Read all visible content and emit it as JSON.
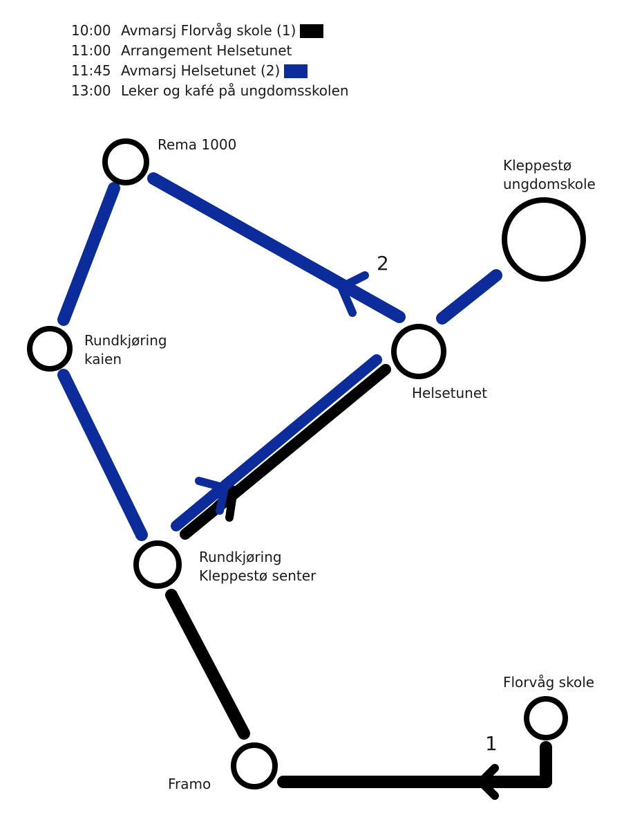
{
  "colors": {
    "route1": "#000000",
    "route2": "#0b2c9a",
    "node": "#000000"
  },
  "legend": [
    {
      "time": "10:00",
      "text": "Avmarsj Florvåg skole (1)",
      "swatch": "#000000"
    },
    {
      "time": "11:00",
      "text": "Arrangement Helsetunet",
      "swatch": ""
    },
    {
      "time": "11:45",
      "text": "Avmarsj Helsetunet (2)",
      "swatch": "#0b2c9a"
    },
    {
      "time": "13:00",
      "text": "Leker og kafé på ungdomsskolen",
      "swatch": ""
    }
  ],
  "nodes": {
    "rema": {
      "line1": "Rema 1000"
    },
    "kaien": {
      "line1": "Rundkjøring",
      "line2": "kaien"
    },
    "kleppesto_ungdomskole": {
      "line1": "Kleppestø",
      "line2": "ungdomskole"
    },
    "helsetunet": {
      "line1": "Helsetunet"
    },
    "kleppesto_senter": {
      "line1": "Rundkjøring",
      "line2": "Kleppestø senter"
    },
    "florvag": {
      "line1": "Florvåg skole"
    },
    "framo": {
      "line1": "Framo"
    }
  },
  "route_numbers": {
    "route1": "1",
    "route2": "2"
  }
}
